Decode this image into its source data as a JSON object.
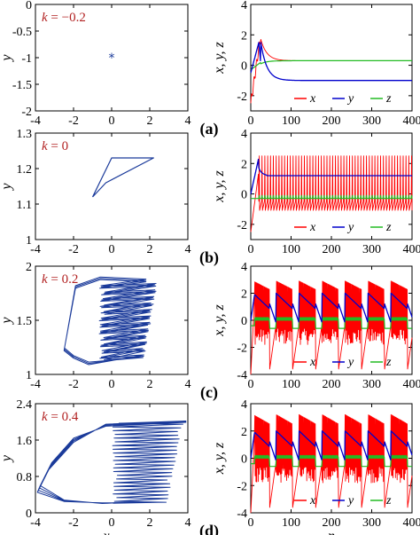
{
  "chart_data": [
    {
      "type": "scatter",
      "row": 0,
      "side": "phase",
      "k_label": "k = −0.2",
      "k_sym": "k",
      "k_val": " = −0.2",
      "xlim": [
        -4,
        4
      ],
      "ylim": [
        -2,
        0
      ],
      "xticks": [
        -4,
        -2,
        0,
        2,
        4
      ],
      "yticks": [
        0,
        -0.5,
        -1,
        -1.5,
        -2
      ],
      "ytick_labels": [
        "0",
        "-0.5",
        "-1",
        "-1.5",
        "-2"
      ],
      "xtick_labels": [
        "-4",
        "-2",
        "0",
        "2",
        "4"
      ],
      "ylabel": "y",
      "xlabel": "",
      "points": [
        [
          0,
          -1
        ]
      ]
    },
    {
      "type": "line",
      "row": 0,
      "side": "time",
      "panel_label": "(a)",
      "xlim": [
        0,
        400
      ],
      "ylim": [
        -3,
        4
      ],
      "yticks": [
        4,
        2,
        0,
        -2
      ],
      "ytick_labels": [
        "4",
        "2",
        "0",
        "-2"
      ],
      "xticks": [
        0,
        100,
        200,
        300,
        400
      ],
      "xtick_labels": [
        "0",
        "100",
        "200",
        "300",
        "400"
      ],
      "ylabel": "x, y, z",
      "xlabel": "",
      "legend": [
        "x",
        "y",
        "z"
      ],
      "mode": "converge",
      "final": {
        "x": 0.3,
        "y": -1,
        "z": 0.3
      }
    },
    {
      "type": "line",
      "row": 1,
      "side": "phase",
      "k_label": "k = 0",
      "k_sym": "k",
      "k_val": " = 0",
      "xlim": [
        -4,
        4
      ],
      "ylim": [
        1,
        1.3
      ],
      "xticks": [
        -4,
        -2,
        0,
        2,
        4
      ],
      "yticks": [
        1.3,
        1.2,
        1.1,
        1
      ],
      "ytick_labels": [
        "1.3",
        "1.2",
        "1.1",
        "1"
      ],
      "xtick_labels": [
        "-4",
        "-2",
        "0",
        "2",
        "4"
      ],
      "ylabel": "y",
      "xlabel": "",
      "polygon": [
        [
          -1,
          1.12
        ],
        [
          0,
          1.23
        ],
        [
          2.2,
          1.23
        ],
        [
          -0.3,
          1.16
        ],
        [
          -1,
          1.12
        ]
      ]
    },
    {
      "type": "line",
      "row": 1,
      "side": "time",
      "panel_label": "(b)",
      "xlim": [
        0,
        400
      ],
      "ylim": [
        -3,
        4
      ],
      "yticks": [
        4,
        2,
        0,
        -2
      ],
      "ytick_labels": [
        "4",
        "2",
        "0",
        "-2"
      ],
      "xticks": [
        0,
        100,
        200,
        300,
        400
      ],
      "xtick_labels": [
        "0",
        "100",
        "200",
        "300",
        "400"
      ],
      "ylabel": "x, y, z",
      "xlabel": "",
      "legend": [
        "x",
        "y",
        "z"
      ],
      "mode": "spikes",
      "final": {
        "x": 0.3,
        "y": 1.2,
        "z": -0.3
      }
    },
    {
      "type": "line",
      "row": 2,
      "side": "phase",
      "k_label": "k = 0.2",
      "k_sym": "k",
      "k_val": " = 0.2",
      "xlim": [
        -4,
        4
      ],
      "ylim": [
        1,
        2
      ],
      "xticks": [
        -4,
        -2,
        0,
        2,
        4
      ],
      "yticks": [
        2,
        1.5,
        1
      ],
      "ytick_labels": [
        "2",
        "1.5",
        "1"
      ],
      "xtick_labels": [
        "-4",
        "-2",
        "0",
        "2",
        "4"
      ],
      "ylabel": "y",
      "xlabel": "",
      "attractor": {
        "x_left": -2.5,
        "x_right": 2.5,
        "y_low": 1.05,
        "y_high": 1.9
      }
    },
    {
      "type": "line",
      "row": 2,
      "side": "time",
      "panel_label": "(c)",
      "xlim": [
        0,
        400
      ],
      "ylim": [
        -4,
        4
      ],
      "yticks": [
        4,
        2,
        0,
        -2,
        -4
      ],
      "ytick_labels": [
        "4",
        "2",
        "0",
        "-2",
        "-4"
      ],
      "xticks": [
        0,
        100,
        200,
        300,
        400
      ],
      "xtick_labels": [
        "0",
        "100",
        "200",
        "300",
        "400"
      ],
      "ylabel": "x, y, z",
      "xlabel": "",
      "legend": [
        "x",
        "y",
        "z"
      ],
      "mode": "bursting",
      "period": 57
    },
    {
      "type": "line",
      "row": 3,
      "side": "phase",
      "k_label": "k = 0.4",
      "k_sym": "k",
      "k_val": " = 0.4",
      "xlim": [
        -4,
        4
      ],
      "ylim": [
        0,
        2.4
      ],
      "xticks": [
        -4,
        -2,
        0,
        2,
        4
      ],
      "yticks": [
        2.4,
        1.6,
        0.8,
        0
      ],
      "ytick_labels": [
        "2.4",
        "1.6",
        "0.8",
        "0"
      ],
      "xtick_labels": [
        "-4",
        "-2",
        "0",
        "2",
        "4"
      ],
      "ylabel": "y",
      "xlabel": "x",
      "attractor": {
        "x_left": -4,
        "x_right": 4,
        "y_low": 0.15,
        "y_high": 2.1
      }
    },
    {
      "type": "line",
      "row": 3,
      "side": "time",
      "panel_label": "(d)",
      "xlim": [
        0,
        400
      ],
      "ylim": [
        -4,
        4
      ],
      "yticks": [
        4,
        2,
        0,
        -2,
        -4
      ],
      "ytick_labels": [
        "4",
        "2",
        "0",
        "-2",
        "-4"
      ],
      "xticks": [
        0,
        100,
        200,
        300,
        400
      ],
      "xtick_labels": [
        "0",
        "100",
        "200",
        "300",
        "400"
      ],
      "ylabel": "x, y, z",
      "xlabel": "n",
      "legend": [
        "x",
        "y",
        "z"
      ],
      "mode": "bursting",
      "period": 57
    }
  ],
  "colors": {
    "x": "#ff0000",
    "y": "#0000cc",
    "z": "#22bb22",
    "phase": "#1a3a9a",
    "k": "#b22222"
  }
}
